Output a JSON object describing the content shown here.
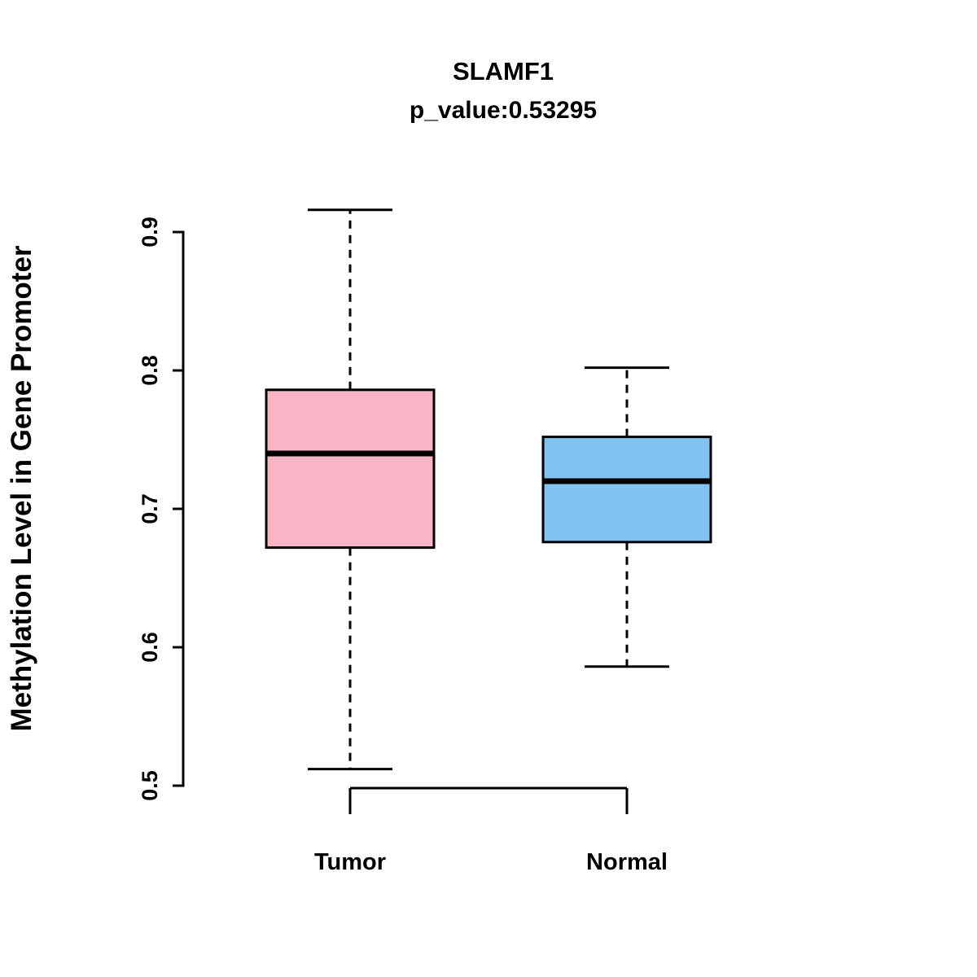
{
  "chart_data": {
    "type": "boxplot",
    "title": "SLAMF1",
    "subtitle": "p_value:0.53295",
    "ylabel": "Methylation Level in Gene Promoter",
    "xlabel": "",
    "ylim": [
      0.5,
      0.9
    ],
    "yticks": [
      0.5,
      0.6,
      0.7,
      0.8,
      0.9
    ],
    "grid": false,
    "legend": "none",
    "axis_color": "#000000",
    "groups": [
      {
        "label": "Tumor",
        "color": "#F9B4C6",
        "min": 0.512,
        "q1": 0.672,
        "median": 0.74,
        "q3": 0.786,
        "max": 0.916
      },
      {
        "label": "Normal",
        "color": "#7EC3F1",
        "min": 0.586,
        "q1": 0.676,
        "median": 0.72,
        "q3": 0.752,
        "max": 0.802
      }
    ]
  }
}
